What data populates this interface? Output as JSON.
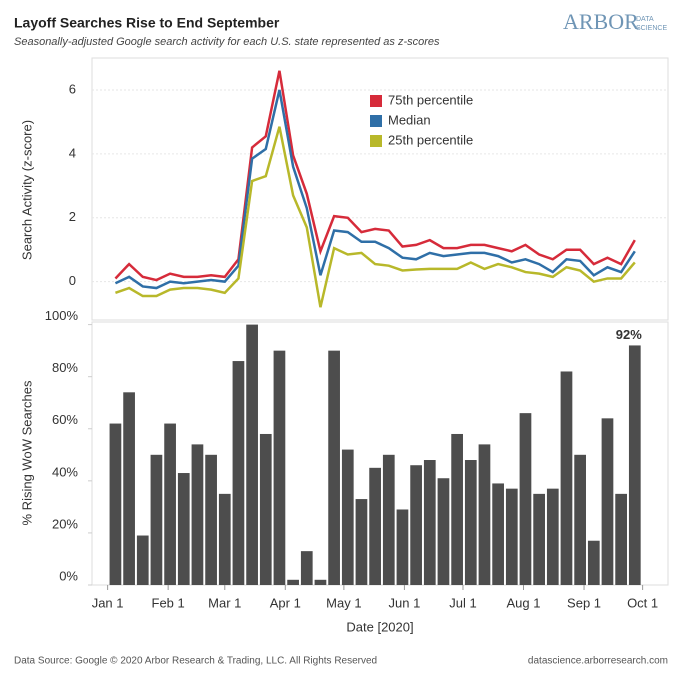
{
  "header": {
    "title": "Layoff Searches Rise to End September",
    "subtitle": "Seasonally-adjusted Google search activity for each U.S. state represented as z-scores",
    "logo": "ARBOR",
    "logo_sub_1": "DATA",
    "logo_sub_2": "SCIENCE"
  },
  "footer": {
    "left": "Data Source: Google © 2020 Arbor Research & Trading, LLC. All Rights Reserved",
    "right": "datascience.arborresearch.com"
  },
  "chart_data": [
    {
      "type": "line",
      "ylabel": "Search Activity (z-score)",
      "x": [
        4,
        11,
        18,
        25,
        32,
        39,
        46,
        53,
        60,
        67,
        74,
        81,
        88,
        95,
        102,
        109,
        116,
        123,
        130,
        137,
        144,
        151,
        158,
        165,
        172,
        179,
        186,
        193,
        200,
        207,
        214,
        221,
        228,
        235,
        242,
        249,
        256,
        263,
        270
      ],
      "xlim": [
        -8,
        287
      ],
      "ylim": [
        -1.2,
        7
      ],
      "yticks": [
        0,
        2,
        4,
        6
      ],
      "grid": true,
      "legend": "top-right",
      "series": [
        {
          "name": "75th percentile",
          "color": "#d62b3a",
          "values": [
            0.1,
            0.55,
            0.15,
            0.05,
            0.25,
            0.15,
            0.15,
            0.2,
            0.15,
            0.7,
            4.2,
            4.55,
            6.6,
            3.95,
            2.75,
            0.95,
            2.05,
            2.0,
            1.55,
            1.65,
            1.6,
            1.1,
            1.15,
            1.3,
            1.05,
            1.05,
            1.15,
            1.15,
            1.05,
            0.95,
            1.15,
            0.85,
            0.7,
            1.0,
            1.0,
            0.55,
            0.75,
            0.55,
            1.3
          ]
        },
        {
          "name": "Median",
          "color": "#2f6fa7",
          "values": [
            -0.05,
            0.15,
            -0.15,
            -0.2,
            0.0,
            -0.05,
            0.0,
            0.05,
            0.0,
            0.5,
            3.85,
            4.15,
            6.0,
            3.6,
            2.3,
            0.2,
            1.6,
            1.55,
            1.25,
            1.25,
            1.05,
            0.75,
            0.7,
            0.9,
            0.8,
            0.85,
            0.9,
            0.9,
            0.8,
            0.6,
            0.7,
            0.55,
            0.3,
            0.7,
            0.65,
            0.2,
            0.45,
            0.3,
            0.95
          ]
        },
        {
          "name": "25th percentile",
          "color": "#b8b82a",
          "values": [
            -0.35,
            -0.2,
            -0.45,
            -0.45,
            -0.25,
            -0.2,
            -0.2,
            -0.25,
            -0.35,
            0.1,
            3.15,
            3.3,
            4.85,
            2.7,
            1.7,
            -0.8,
            1.05,
            0.85,
            0.9,
            0.55,
            0.5,
            0.35,
            0.38,
            0.4,
            0.4,
            0.4,
            0.6,
            0.4,
            0.55,
            0.45,
            0.3,
            0.25,
            0.15,
            0.45,
            0.35,
            0.0,
            0.1,
            0.1,
            0.6
          ]
        }
      ]
    },
    {
      "type": "bar",
      "ylabel": "% Rising WoW Searches",
      "xlabel": "Date [2020]",
      "color": "#4d4d4d",
      "x": [
        4,
        11,
        18,
        25,
        32,
        39,
        46,
        53,
        60,
        67,
        74,
        81,
        88,
        95,
        102,
        109,
        116,
        123,
        130,
        137,
        144,
        151,
        158,
        165,
        172,
        179,
        186,
        193,
        200,
        207,
        214,
        221,
        228,
        235,
        242,
        249,
        256,
        263,
        270
      ],
      "values": [
        62,
        74,
        19,
        50,
        62,
        43,
        54,
        50,
        35,
        86,
        100,
        58,
        90,
        2,
        13,
        2,
        90,
        52,
        33,
        45,
        50,
        29,
        46,
        48,
        41,
        58,
        48,
        54,
        39,
        37,
        66,
        35,
        37,
        82,
        50,
        17,
        64,
        35,
        92
      ],
      "last_label": "92%",
      "xlim": [
        -8,
        287
      ],
      "ylim": [
        0,
        101
      ],
      "yticks": [
        {
          "value": 0,
          "label": "0%"
        },
        {
          "value": 20,
          "label": "20%"
        },
        {
          "value": 40,
          "label": "40%"
        },
        {
          "value": 60,
          "label": "60%"
        },
        {
          "value": 80,
          "label": "80%"
        },
        {
          "value": 100,
          "label": "100%"
        }
      ],
      "xticks": [
        {
          "value": 0,
          "label": "Jan 1"
        },
        {
          "value": 31,
          "label": "Feb 1"
        },
        {
          "value": 60,
          "label": "Mar 1"
        },
        {
          "value": 91,
          "label": "Apr 1"
        },
        {
          "value": 121,
          "label": "May 1"
        },
        {
          "value": 152,
          "label": "Jun 1"
        },
        {
          "value": 182,
          "label": "Jul 1"
        },
        {
          "value": 213,
          "label": "Aug 1"
        },
        {
          "value": 244,
          "label": "Sep 1"
        },
        {
          "value": 274,
          "label": "Oct 1"
        }
      ]
    }
  ]
}
